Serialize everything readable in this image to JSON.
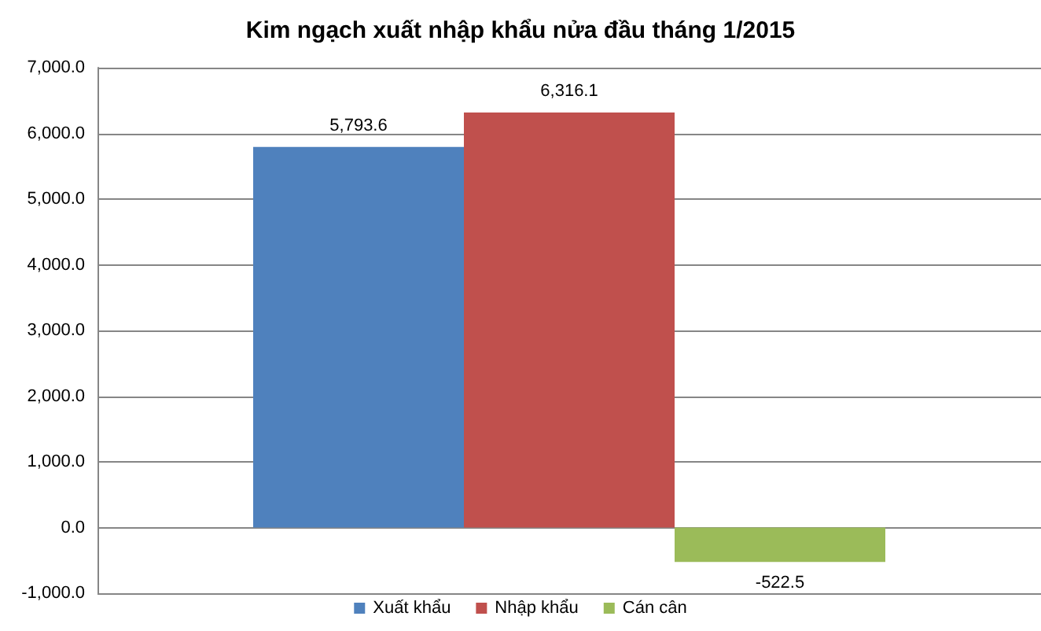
{
  "chart_data": {
    "type": "bar",
    "title": "Kim ngạch xuất nhập khẩu nửa đầu tháng 1/2015",
    "categories": [
      null
    ],
    "series": [
      {
        "name": "Xuất khẩu",
        "color": "#4f81bd",
        "values": [
          5793.6
        ],
        "value_labels": [
          "5,793.6"
        ]
      },
      {
        "name": "Nhập khẩu",
        "color": "#c0504d",
        "values": [
          6316.1
        ],
        "value_labels": [
          "6,316.1"
        ]
      },
      {
        "name": "Cán cân",
        "color": "#9bbb59",
        "values": [
          -522.5
        ],
        "value_labels": [
          "-522.5"
        ]
      }
    ],
    "ylim": [
      -1000,
      7000
    ],
    "yticks": [
      {
        "value": -1000,
        "label": "-1,000.0"
      },
      {
        "value": 0,
        "label": "0.0"
      },
      {
        "value": 1000,
        "label": "1,000.0"
      },
      {
        "value": 2000,
        "label": "2,000.0"
      },
      {
        "value": 3000,
        "label": "3,000.0"
      },
      {
        "value": 4000,
        "label": "4,000.0"
      },
      {
        "value": 5000,
        "label": "5,000.0"
      },
      {
        "value": 6000,
        "label": "6,000.0"
      },
      {
        "value": 7000,
        "label": "7,000.0"
      }
    ],
    "grid": "y",
    "legend": "bottom",
    "tick_labels": "y"
  }
}
